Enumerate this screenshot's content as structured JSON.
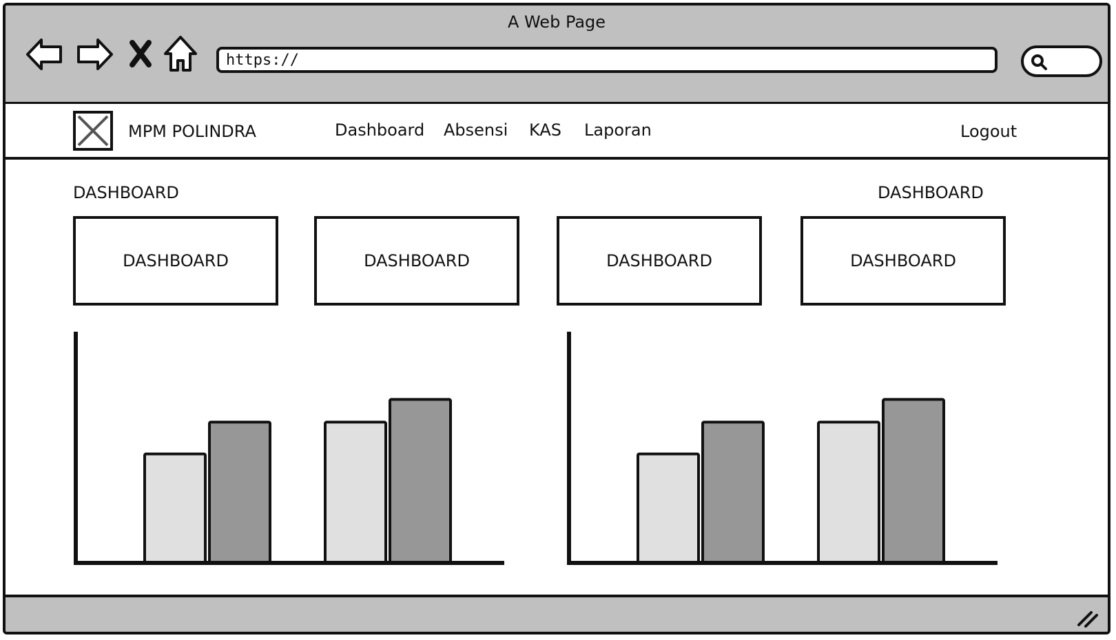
{
  "window": {
    "title": "A Web Page"
  },
  "browser": {
    "url": "https://"
  },
  "navbar": {
    "brand": "MPM POLINDRA",
    "links": [
      "Dashboard",
      "Absensi",
      "KAS",
      "Laporan"
    ],
    "logout": "Logout"
  },
  "content": {
    "title_left": "DASHBOARD",
    "title_right": "DASHBOARD",
    "cards": [
      "DASHBOARD",
      "DASHBOARD",
      "DASHBOARD",
      "DASHBOARD"
    ]
  },
  "colors": {
    "series_light": "#e0e0e0",
    "series_dark": "#979797",
    "chrome": "#c0c0c0"
  },
  "chart_data": [
    {
      "type": "bar",
      "categories": [
        "",
        ""
      ],
      "series": [
        {
          "values": [
            48,
            62
          ]
        },
        {
          "values": [
            62,
            72
          ]
        }
      ],
      "ylim": [
        0,
        100
      ],
      "grid": false
    },
    {
      "type": "bar",
      "categories": [
        "",
        ""
      ],
      "series": [
        {
          "values": [
            48,
            62
          ]
        },
        {
          "values": [
            62,
            72
          ]
        }
      ],
      "ylim": [
        0,
        100
      ],
      "grid": false
    }
  ]
}
